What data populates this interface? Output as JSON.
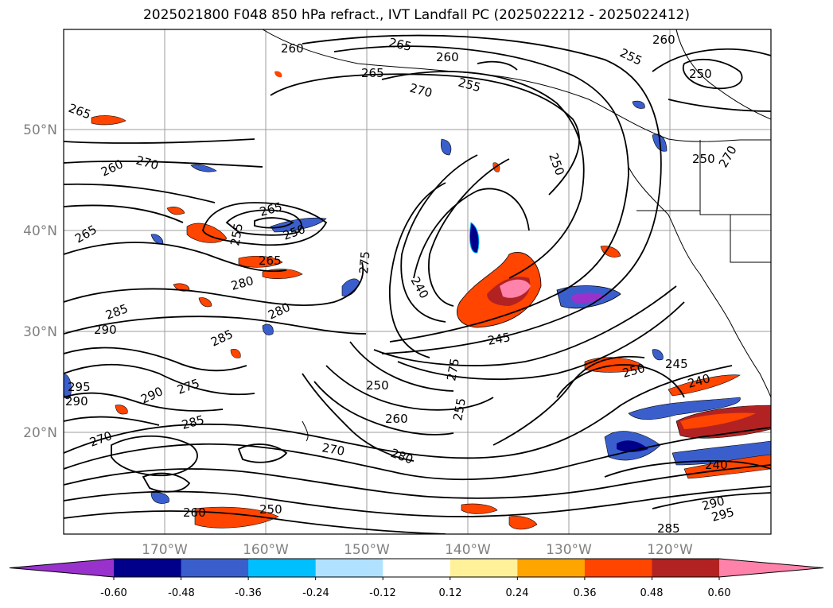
{
  "title": "2025021800 F048 850 hPa refract., IVT Landfall PC (2025022212 - 2025022412)",
  "map": {
    "lat_ticks": [
      "50°N",
      "40°N",
      "30°N",
      "20°N"
    ],
    "lon_ticks": [
      "170°W",
      "160°W",
      "150°W",
      "140°W",
      "130°W",
      "120°W"
    ],
    "grid": true
  },
  "contour_labels": [
    "265",
    "260",
    "265",
    "270",
    "255",
    "260",
    "265",
    "250",
    "255",
    "265",
    "260",
    "250",
    "270",
    "255",
    "250",
    "260",
    "265",
    "250",
    "240",
    "280",
    "275",
    "265",
    "270",
    "245",
    "275",
    "250",
    "290",
    "285",
    "280",
    "285",
    "285",
    "295",
    "290",
    "275",
    "290",
    "270",
    "260",
    "250",
    "260",
    "280",
    "255",
    "250",
    "245",
    "240",
    "240",
    "290",
    "295",
    "285",
    "270"
  ],
  "colorbar": {
    "ticks": [
      "-0.60",
      "-0.48",
      "-0.36",
      "-0.24",
      "-0.12",
      "0.12",
      "0.24",
      "0.36",
      "0.48",
      "0.60"
    ],
    "colors": [
      "#9932cc",
      "#00008b",
      "#3a5fcd",
      "#00bfff",
      "#b0e2ff",
      "#ffffff",
      "#fff09a",
      "#ffa500",
      "#ff4500",
      "#b22222",
      "#ff82ab"
    ],
    "extend": "both"
  }
}
